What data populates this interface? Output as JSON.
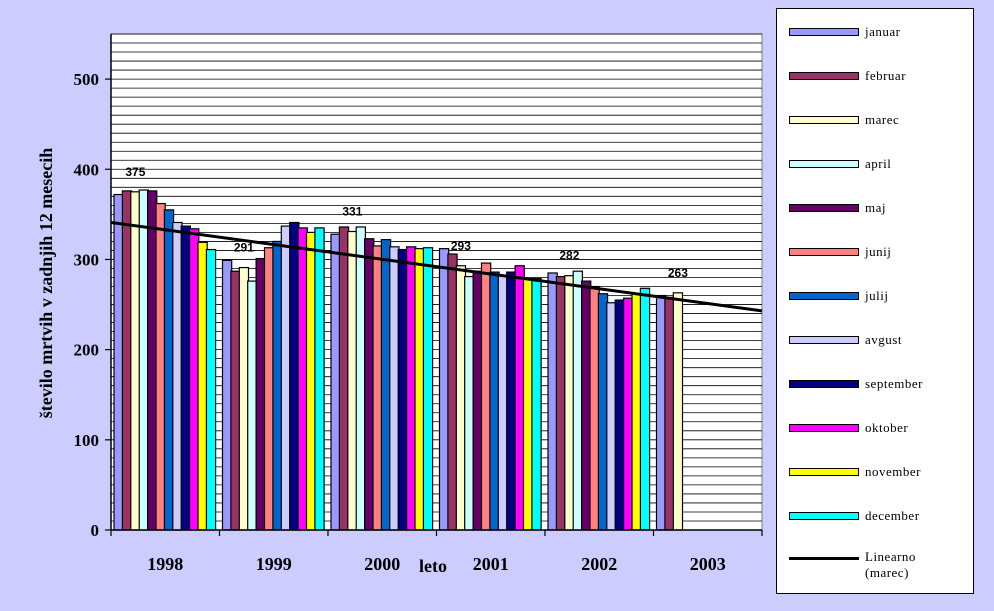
{
  "chart_data": {
    "type": "bar",
    "ylabel": "število mrtvih v zadnjih 12 mesecih",
    "xlabel": "leto",
    "ylim": [
      0,
      550
    ],
    "yticks": [
      0,
      100,
      200,
      300,
      400,
      500
    ],
    "grid": true,
    "legend_position": "right",
    "years": [
      "1998",
      "1999",
      "2000",
      "2001",
      "2002",
      "2003"
    ],
    "series": [
      {
        "name": "januar",
        "color": "#9999ff",
        "values": [
          372,
          299,
          328,
          312,
          285,
          260
        ]
      },
      {
        "name": "februar",
        "color": "#993366",
        "values": [
          376,
          287,
          336,
          306,
          281,
          258
        ]
      },
      {
        "name": "marec",
        "color": "#ffffcc",
        "values": [
          375,
          291,
          331,
          293,
          282,
          263
        ]
      },
      {
        "name": "april",
        "color": "#ccffff",
        "values": [
          377,
          276,
          336,
          281,
          287,
          null
        ]
      },
      {
        "name": "maj",
        "color": "#660066",
        "values": [
          376,
          301,
          323,
          287,
          276,
          null
        ]
      },
      {
        "name": "junij",
        "color": "#ff8080",
        "values": [
          362,
          313,
          315,
          296,
          270,
          null
        ]
      },
      {
        "name": "julij",
        "color": "#0066cc",
        "values": [
          355,
          320,
          322,
          286,
          262,
          null
        ]
      },
      {
        "name": "avgust",
        "color": "#ccccff",
        "values": [
          341,
          337,
          314,
          282,
          252,
          null
        ]
      },
      {
        "name": "september",
        "color": "#000080",
        "values": [
          337,
          341,
          311,
          286,
          255,
          null
        ]
      },
      {
        "name": "oktober",
        "color": "#ff00ff",
        "values": [
          334,
          335,
          314,
          293,
          257,
          null
        ]
      },
      {
        "name": "november",
        "color": "#ffff00",
        "values": [
          319,
          330,
          312,
          278,
          262,
          null
        ]
      },
      {
        "name": "december",
        "color": "#00ffff",
        "values": [
          311,
          335,
          313,
          279,
          268,
          null
        ]
      }
    ],
    "data_labels": [
      {
        "year": "1998",
        "text": "375"
      },
      {
        "year": "1999",
        "text": "291"
      },
      {
        "year": "2000",
        "text": "331"
      },
      {
        "year": "2001",
        "text": "293"
      },
      {
        "year": "2002",
        "text": "282"
      },
      {
        "year": "2003",
        "text": "263"
      }
    ],
    "trendline": {
      "name": "Linearno (marec)",
      "start_value": 341,
      "end_value": 243
    }
  }
}
